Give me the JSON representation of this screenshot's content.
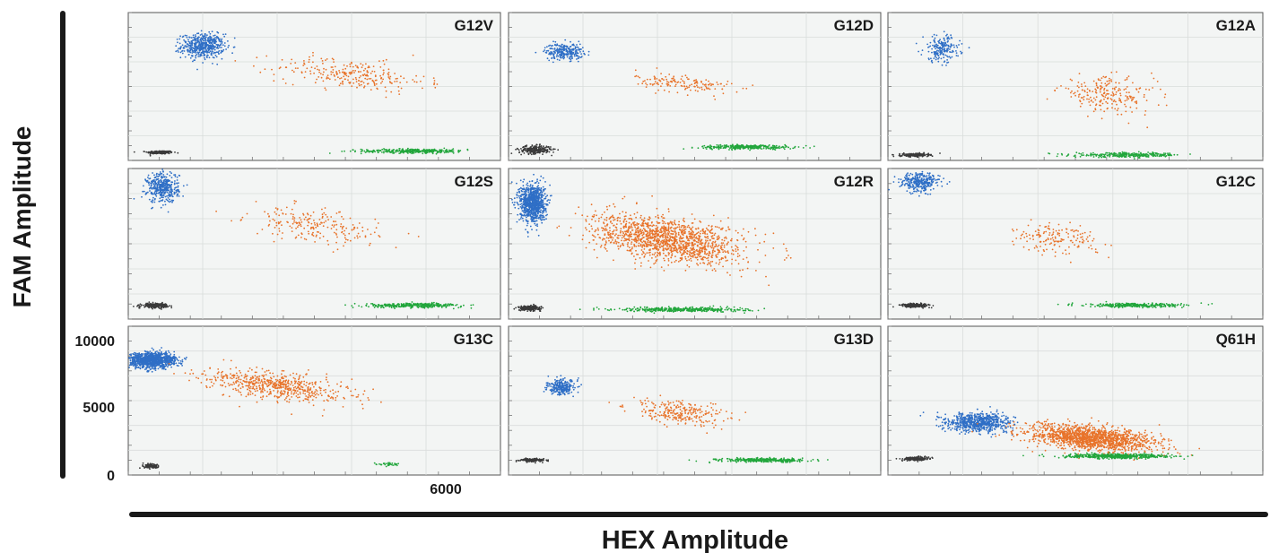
{
  "figure": {
    "y_axis_title": "FAM Amplitude",
    "x_axis_title": "HEX Amplitude"
  },
  "colors": {
    "negative": "#3a3a3a",
    "fam_positive": "#2f6fc6",
    "double_positive": "#e8732a",
    "hex_positive": "#22a63c",
    "panel_background": "#f3f5f4",
    "gridline": "#d9dcdb",
    "axis_bar": "#1a1a1a"
  },
  "chart_data": {
    "type": "scatter",
    "layout": "3x3 small multiples",
    "ylim": [
      0,
      11000
    ],
    "xlim": [
      0,
      7000
    ],
    "y_tick_labels": [
      "10000",
      "5000",
      "0"
    ],
    "y_ticks": [
      10000,
      5000,
      0
    ],
    "x_tick_labels": [
      "6000"
    ],
    "x_ticks": [
      6000
    ],
    "grid": true,
    "cluster_types": [
      "negative",
      "fam_positive",
      "double_positive",
      "hex_positive"
    ],
    "panels": [
      {
        "label": "G12V",
        "clusters": [
          {
            "type": "negative",
            "x": 600,
            "y": 600,
            "sx": 120,
            "sy": 60,
            "n": 220
          },
          {
            "type": "fam_positive",
            "x": 1400,
            "y": 8500,
            "sx": 200,
            "sy": 450,
            "n": 500
          },
          {
            "type": "double_positive",
            "x": 4200,
            "y": 6400,
            "sx": 700,
            "sy": 550,
            "n": 260,
            "tilt": -0.4
          },
          {
            "type": "hex_positive",
            "x": 5400,
            "y": 700,
            "sx": 500,
            "sy": 80,
            "n": 320
          }
        ]
      },
      {
        "label": "G12D",
        "clusters": [
          {
            "type": "negative",
            "x": 500,
            "y": 800,
            "sx": 150,
            "sy": 150,
            "n": 250
          },
          {
            "type": "fam_positive",
            "x": 1050,
            "y": 8100,
            "sx": 180,
            "sy": 300,
            "n": 260
          },
          {
            "type": "double_positive",
            "x": 3300,
            "y": 5700,
            "sx": 450,
            "sy": 350,
            "n": 150,
            "tilt": -0.4
          },
          {
            "type": "hex_positive",
            "x": 4500,
            "y": 1000,
            "sx": 450,
            "sy": 80,
            "n": 320
          }
        ]
      },
      {
        "label": "G12A",
        "clusters": [
          {
            "type": "negative",
            "x": 500,
            "y": 400,
            "sx": 130,
            "sy": 60,
            "n": 200
          },
          {
            "type": "fam_positive",
            "x": 1000,
            "y": 8300,
            "sx": 170,
            "sy": 500,
            "n": 200
          },
          {
            "type": "double_positive",
            "x": 4100,
            "y": 4900,
            "sx": 450,
            "sy": 650,
            "n": 230,
            "tilt": -0.3
          },
          {
            "type": "hex_positive",
            "x": 4500,
            "y": 400,
            "sx": 500,
            "sy": 80,
            "n": 300
          }
        ]
      },
      {
        "label": "G12S",
        "clusters": [
          {
            "type": "negative",
            "x": 500,
            "y": 1000,
            "sx": 120,
            "sy": 80,
            "n": 220
          },
          {
            "type": "fam_positive",
            "x": 650,
            "y": 9600,
            "sx": 150,
            "sy": 550,
            "n": 400
          },
          {
            "type": "double_positive",
            "x": 3500,
            "y": 6800,
            "sx": 600,
            "sy": 600,
            "n": 220,
            "tilt": -0.5
          },
          {
            "type": "hex_positive",
            "x": 5400,
            "y": 1000,
            "sx": 450,
            "sy": 80,
            "n": 340
          }
        ]
      },
      {
        "label": "G12R",
        "clusters": [
          {
            "type": "negative",
            "x": 400,
            "y": 800,
            "sx": 100,
            "sy": 80,
            "n": 260
          },
          {
            "type": "fam_positive",
            "x": 450,
            "y": 8500,
            "sx": 120,
            "sy": 700,
            "n": 900
          },
          {
            "type": "double_positive",
            "x": 3000,
            "y": 5800,
            "sx": 700,
            "sy": 800,
            "n": 1400,
            "tilt": -0.55
          },
          {
            "type": "hex_positive",
            "x": 3300,
            "y": 700,
            "sx": 600,
            "sy": 80,
            "n": 400
          }
        ]
      },
      {
        "label": "G12C",
        "clusters": [
          {
            "type": "negative",
            "x": 500,
            "y": 1000,
            "sx": 130,
            "sy": 70,
            "n": 220
          },
          {
            "type": "fam_positive",
            "x": 600,
            "y": 10000,
            "sx": 180,
            "sy": 350,
            "n": 300
          },
          {
            "type": "double_positive",
            "x": 3100,
            "y": 5900,
            "sx": 400,
            "sy": 550,
            "n": 160,
            "tilt": -0.45
          },
          {
            "type": "hex_positive",
            "x": 4600,
            "y": 1000,
            "sx": 450,
            "sy": 70,
            "n": 320
          }
        ]
      },
      {
        "label": "G13C",
        "clusters": [
          {
            "type": "negative",
            "x": 450,
            "y": 650,
            "sx": 80,
            "sy": 70,
            "n": 120
          },
          {
            "type": "fam_positive",
            "x": 450,
            "y": 8500,
            "sx": 220,
            "sy": 280,
            "n": 1100
          },
          {
            "type": "double_positive",
            "x": 2800,
            "y": 6600,
            "sx": 650,
            "sy": 500,
            "n": 600,
            "tilt": -0.45
          },
          {
            "type": "hex_positive",
            "x": 4900,
            "y": 800,
            "sx": 150,
            "sy": 60,
            "n": 40
          }
        ]
      },
      {
        "label": "G13D",
        "clusters": [
          {
            "type": "negative",
            "x": 450,
            "y": 1100,
            "sx": 120,
            "sy": 60,
            "n": 150
          },
          {
            "type": "fam_positive",
            "x": 1000,
            "y": 6500,
            "sx": 130,
            "sy": 280,
            "n": 250
          },
          {
            "type": "double_positive",
            "x": 3200,
            "y": 4600,
            "sx": 450,
            "sy": 420,
            "n": 260,
            "tilt": -0.35
          },
          {
            "type": "hex_positive",
            "x": 4800,
            "y": 1100,
            "sx": 400,
            "sy": 70,
            "n": 330
          }
        ]
      },
      {
        "label": "Q61H",
        "clusters": [
          {
            "type": "negative",
            "x": 500,
            "y": 1200,
            "sx": 120,
            "sy": 70,
            "n": 200
          },
          {
            "type": "fam_positive",
            "x": 1700,
            "y": 3900,
            "sx": 300,
            "sy": 350,
            "n": 700
          },
          {
            "type": "double_positive",
            "x": 3800,
            "y": 2700,
            "sx": 600,
            "sy": 450,
            "n": 1500,
            "tilt": -0.3
          },
          {
            "type": "hex_positive",
            "x": 4300,
            "y": 1400,
            "sx": 500,
            "sy": 80,
            "n": 500
          }
        ]
      }
    ]
  }
}
